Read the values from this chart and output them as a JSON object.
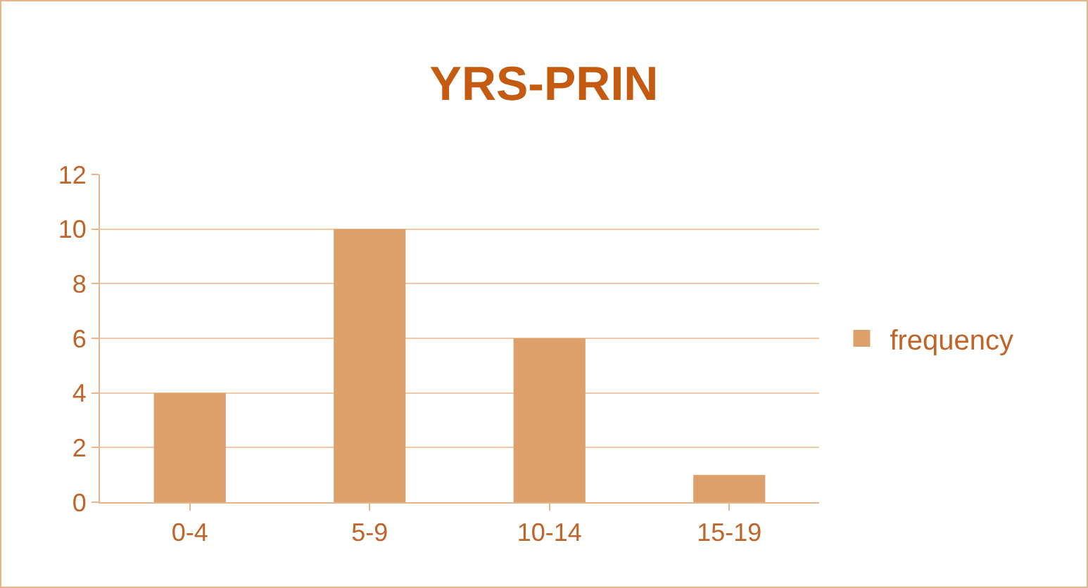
{
  "chart_data": {
    "type": "bar",
    "title": "YRS-PRIN",
    "categories": [
      "0-4",
      "5-9",
      "10-14",
      "15-19"
    ],
    "series": [
      {
        "name": "frequency",
        "color": "#dda06a",
        "values": [
          4,
          10,
          6,
          1
        ]
      }
    ],
    "ylim": [
      0,
      12
    ],
    "yticks": [
      0,
      2,
      4,
      6,
      8,
      10,
      12
    ],
    "grid": "y",
    "legend": "right"
  }
}
